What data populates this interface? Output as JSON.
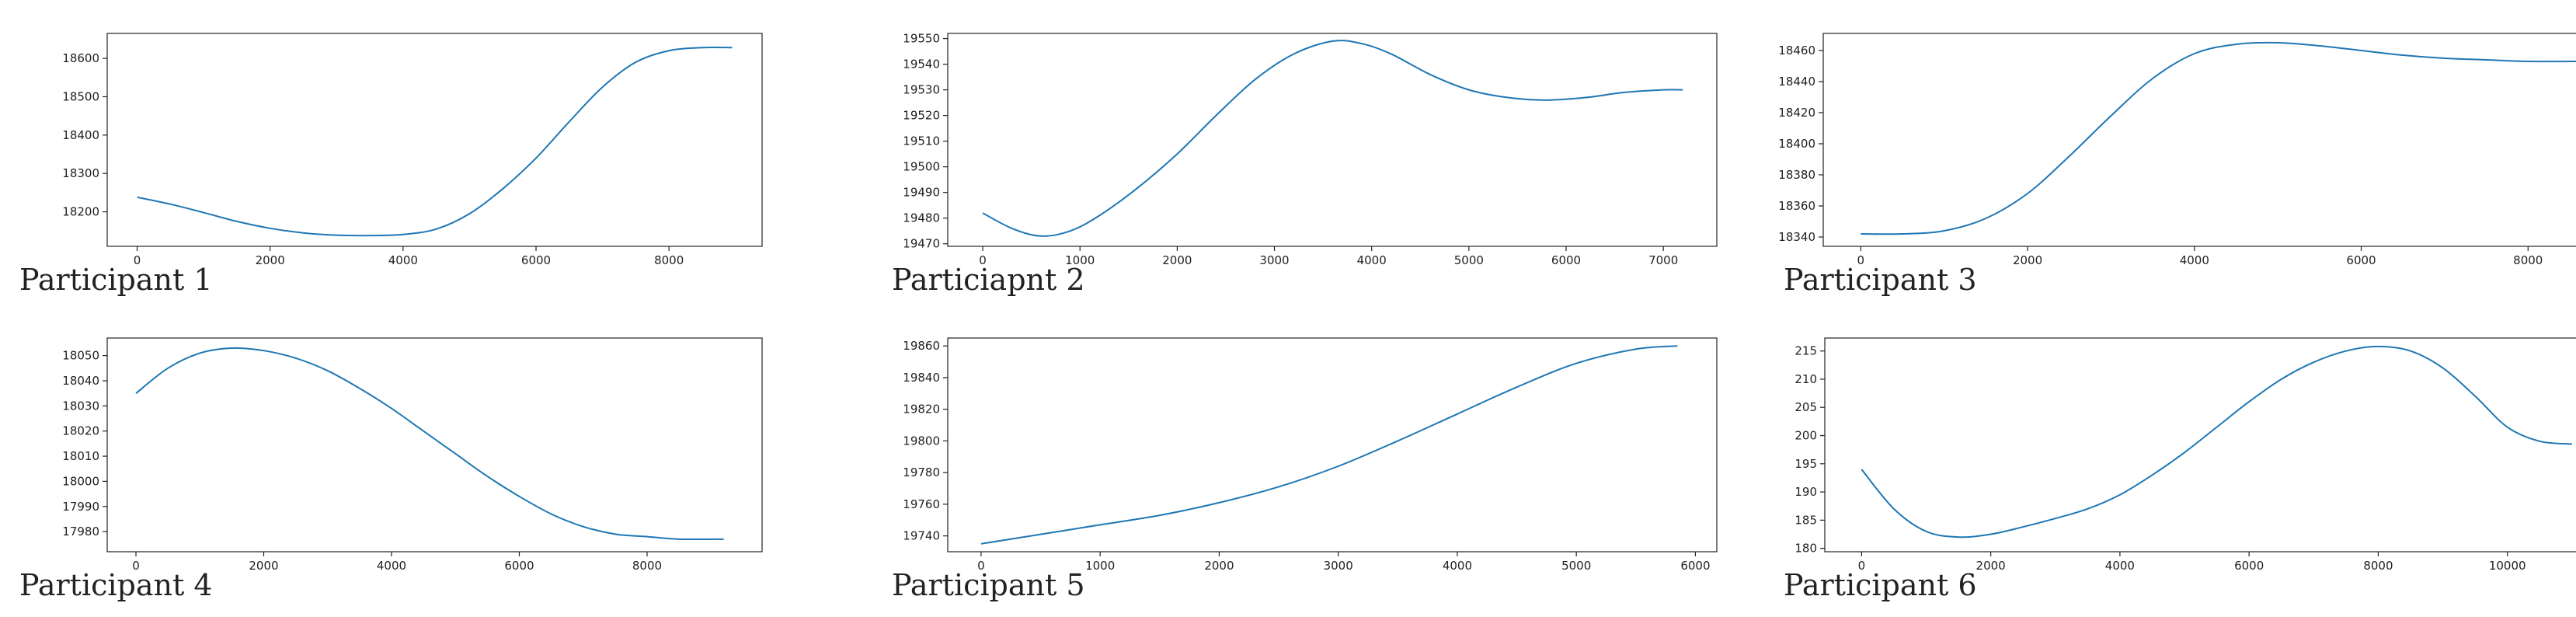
{
  "style": {
    "line_color": "#1f77b4",
    "axis_color": "#222222",
    "background": "#ffffff"
  },
  "chart_data": [
    {
      "type": "line",
      "caption": "Participant 1",
      "xticks": [
        0,
        2000,
        4000,
        6000,
        8000
      ],
      "yticks": [
        18200,
        18300,
        18400,
        18500,
        18600
      ],
      "xlim": [
        -450,
        9400
      ],
      "ylim": [
        18110,
        18665
      ],
      "series": [
        {
          "x": [
            0,
            500,
            1000,
            1500,
            2000,
            2500,
            3000,
            3500,
            4000,
            4500,
            5000,
            5500,
            6000,
            6500,
            7000,
            7500,
            8000,
            8500,
            8950
          ],
          "y": [
            18238,
            18220,
            18198,
            18175,
            18157,
            18145,
            18139,
            18138,
            18141,
            18155,
            18195,
            18260,
            18340,
            18435,
            18525,
            18590,
            18620,
            18628,
            18628
          ]
        }
      ]
    },
    {
      "type": "line",
      "caption": "Particiapnt 2",
      "xticks": [
        0,
        1000,
        2000,
        3000,
        4000,
        5000,
        6000,
        7000
      ],
      "yticks": [
        19470,
        19480,
        19490,
        19500,
        19510,
        19520,
        19530,
        19540,
        19550
      ],
      "xlim": [
        -360,
        7550
      ],
      "ylim": [
        19469,
        19552
      ],
      "series": [
        {
          "x": [
            0,
            300,
            600,
            900,
            1200,
            1600,
            2000,
            2400,
            2800,
            3200,
            3600,
            3900,
            4200,
            4600,
            5000,
            5400,
            5800,
            6200,
            6600,
            7000,
            7200
          ],
          "y": [
            19482,
            19476,
            19473,
            19475,
            19481,
            19492,
            19505,
            19520,
            19534,
            19544,
            19549,
            19548,
            19544,
            19536,
            19530,
            19527,
            19526,
            19527,
            19529,
            19530,
            19530
          ]
        }
      ]
    },
    {
      "type": "line",
      "caption": "Participant 3",
      "xticks": [
        0,
        2000,
        4000,
        6000,
        8000
      ],
      "yticks": [
        18340,
        18360,
        18380,
        18400,
        18420,
        18440,
        18460
      ],
      "xlim": [
        -450,
        9050
      ],
      "ylim": [
        18334,
        18471
      ],
      "series": [
        {
          "x": [
            0,
            500,
            1000,
            1500,
            2000,
            2500,
            3000,
            3500,
            4000,
            4500,
            5000,
            5500,
            6000,
            6500,
            7000,
            7500,
            8000,
            8600
          ],
          "y": [
            18342,
            18342,
            18344,
            18352,
            18368,
            18392,
            18418,
            18442,
            18458,
            18464,
            18465,
            18463,
            18460,
            18457,
            18455,
            18454,
            18453,
            18453
          ]
        }
      ]
    },
    {
      "type": "line",
      "caption": "Participant 4",
      "xticks": [
        0,
        2000,
        4000,
        6000,
        8000
      ],
      "yticks": [
        17980,
        17990,
        18000,
        18010,
        18020,
        18030,
        18040,
        18050
      ],
      "xlim": [
        -450,
        9800
      ],
      "ylim": [
        17972,
        18057
      ],
      "series": [
        {
          "x": [
            0,
            500,
            1000,
            1500,
            2000,
            2500,
            3000,
            3500,
            4000,
            4500,
            5000,
            5500,
            6000,
            6500,
            7000,
            7500,
            8000,
            8500,
            9200
          ],
          "y": [
            18035,
            18045,
            18051,
            18053,
            18052,
            18049,
            18044,
            18037,
            18029,
            18020,
            18011,
            18002,
            17994,
            17987,
            17982,
            17979,
            17978,
            17977,
            17977
          ]
        }
      ]
    },
    {
      "type": "line",
      "caption": "Participant 5",
      "xticks": [
        0,
        1000,
        2000,
        3000,
        4000,
        5000,
        6000
      ],
      "yticks": [
        19740,
        19760,
        19780,
        19800,
        19820,
        19840,
        19860
      ],
      "xlim": [
        -280,
        6180
      ],
      "ylim": [
        19730,
        19865
      ],
      "series": [
        {
          "x": [
            0,
            500,
            1000,
            1500,
            2000,
            2500,
            3000,
            3500,
            4000,
            4500,
            5000,
            5500,
            5850
          ],
          "y": [
            19735,
            19741,
            19747,
            19753,
            19761,
            19771,
            19784,
            19800,
            19817,
            19834,
            19849,
            19858,
            19860
          ]
        }
      ]
    },
    {
      "type": "line",
      "caption": "Participant 6",
      "xticks": [
        0,
        2000,
        4000,
        6000,
        8000,
        10000
      ],
      "yticks": [
        180,
        185,
        190,
        195,
        200,
        205,
        210,
        215
      ],
      "xlim": [
        -570,
        11700
      ],
      "ylim": [
        179.4,
        217.3
      ],
      "series": [
        {
          "x": [
            0,
            500,
            1000,
            1500,
            2000,
            2500,
            3000,
            3500,
            4000,
            4500,
            5000,
            5500,
            6000,
            6500,
            7000,
            7500,
            8000,
            8500,
            9000,
            9500,
            10000,
            10500,
            11000
          ],
          "y": [
            194,
            187,
            183,
            182,
            182.5,
            183.8,
            185.3,
            187,
            189.5,
            193,
            197,
            201.5,
            206,
            210,
            213,
            215,
            215.8,
            215,
            212,
            207,
            201.5,
            199,
            198.5
          ]
        }
      ]
    }
  ]
}
